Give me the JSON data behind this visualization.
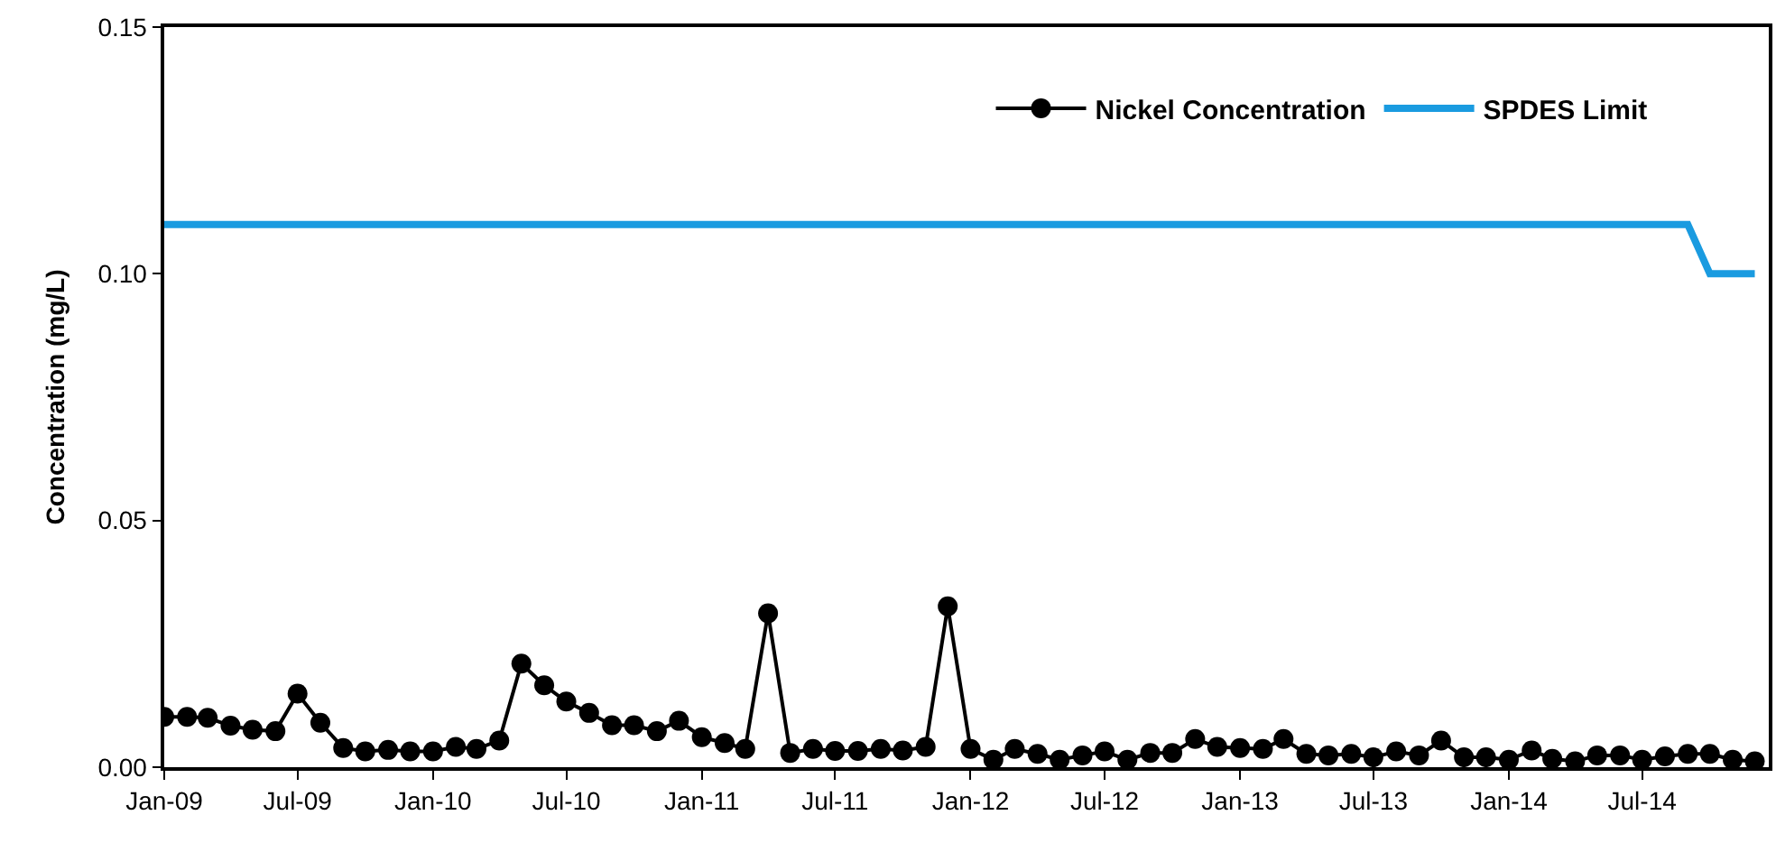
{
  "chart_data": {
    "type": "line",
    "ylabel": "Concentration (mg/L)",
    "x": [
      "2009-01",
      "2009-02",
      "2009-03",
      "2009-04",
      "2009-05",
      "2009-06",
      "2009-07",
      "2009-08",
      "2009-09",
      "2009-10",
      "2009-11",
      "2009-12",
      "2010-01",
      "2010-02",
      "2010-03",
      "2010-04",
      "2010-05",
      "2010-06",
      "2010-07",
      "2010-08",
      "2010-09",
      "2010-10",
      "2010-11",
      "2010-12",
      "2011-01",
      "2011-02",
      "2011-03",
      "2011-04",
      "2011-05",
      "2011-06",
      "2011-07",
      "2011-08",
      "2011-09",
      "2011-10",
      "2011-11",
      "2011-12",
      "2012-01",
      "2012-02",
      "2012-03",
      "2012-04",
      "2012-05",
      "2012-06",
      "2012-07",
      "2012-08",
      "2012-09",
      "2012-10",
      "2012-11",
      "2012-12",
      "2013-01",
      "2013-02",
      "2013-03",
      "2013-04",
      "2013-05",
      "2013-06",
      "2013-07",
      "2013-08",
      "2013-09",
      "2013-10",
      "2013-11",
      "2013-12",
      "2014-01",
      "2014-02",
      "2014-03",
      "2014-04",
      "2014-05",
      "2014-06",
      "2014-07",
      "2014-08",
      "2014-09",
      "2014-10",
      "2014-11",
      "2014-12"
    ],
    "series": [
      {
        "name": "Nickel Concentration",
        "color": "#000000",
        "marker": "circle",
        "values": [
          0.0102,
          0.0102,
          0.01,
          0.0084,
          0.0076,
          0.0073,
          0.0149,
          0.009,
          0.0039,
          0.0032,
          0.0035,
          0.0032,
          0.0032,
          0.0041,
          0.0037,
          0.0054,
          0.021,
          0.0166,
          0.0133,
          0.011,
          0.0085,
          0.0085,
          0.0073,
          0.0094,
          0.0061,
          0.0049,
          0.0037,
          0.0312,
          0.0029,
          0.0037,
          0.0033,
          0.0033,
          0.0037,
          0.0034,
          0.0041,
          0.0326,
          0.0037,
          0.0015,
          0.0037,
          0.0027,
          0.0015,
          0.0024,
          0.0032,
          0.0015,
          0.0029,
          0.0029,
          0.0057,
          0.0041,
          0.0039,
          0.0037,
          0.0057,
          0.0027,
          0.0024,
          0.0027,
          0.002,
          0.0032,
          0.0024,
          0.0054,
          0.002,
          0.002,
          0.0015,
          0.0034,
          0.0017,
          0.0012,
          0.0024,
          0.0024,
          0.0015,
          0.0022,
          0.0027,
          0.0027,
          0.0015,
          0.0012
        ]
      },
      {
        "name": "SPDES Limit",
        "color": "#1a9be0",
        "marker": "none",
        "values": [
          0.11,
          0.11,
          0.11,
          0.11,
          0.11,
          0.11,
          0.11,
          0.11,
          0.11,
          0.11,
          0.11,
          0.11,
          0.11,
          0.11,
          0.11,
          0.11,
          0.11,
          0.11,
          0.11,
          0.11,
          0.11,
          0.11,
          0.11,
          0.11,
          0.11,
          0.11,
          0.11,
          0.11,
          0.11,
          0.11,
          0.11,
          0.11,
          0.11,
          0.11,
          0.11,
          0.11,
          0.11,
          0.11,
          0.11,
          0.11,
          0.11,
          0.11,
          0.11,
          0.11,
          0.11,
          0.11,
          0.11,
          0.11,
          0.11,
          0.11,
          0.11,
          0.11,
          0.11,
          0.11,
          0.11,
          0.11,
          0.11,
          0.11,
          0.11,
          0.11,
          0.11,
          0.11,
          0.11,
          0.11,
          0.11,
          0.11,
          0.11,
          0.11,
          0.11,
          0.1,
          0.1,
          0.1
        ]
      }
    ],
    "xlim": [
      "2009-01-01",
      "2014-12-20"
    ],
    "xticks": [
      {
        "value": "2009-01",
        "label": "Jan-09"
      },
      {
        "value": "2009-07",
        "label": "Jul-09"
      },
      {
        "value": "2010-01",
        "label": "Jan-10"
      },
      {
        "value": "2010-07",
        "label": "Jul-10"
      },
      {
        "value": "2011-01",
        "label": "Jan-11"
      },
      {
        "value": "2011-07",
        "label": "Jul-11"
      },
      {
        "value": "2012-01",
        "label": "Jan-12"
      },
      {
        "value": "2012-07",
        "label": "Jul-12"
      },
      {
        "value": "2013-01",
        "label": "Jan-13"
      },
      {
        "value": "2013-07",
        "label": "Jul-13"
      },
      {
        "value": "2014-01",
        "label": "Jan-14"
      },
      {
        "value": "2014-07",
        "label": "Jul-14"
      }
    ],
    "ylim": [
      0,
      0.15
    ],
    "yticks": [
      {
        "value": 0,
        "label": "0.00"
      },
      {
        "value": 0.05,
        "label": "0.05"
      },
      {
        "value": 0.1,
        "label": "0.10"
      },
      {
        "value": 0.15,
        "label": "0.15"
      }
    ],
    "grid": false,
    "legend": "top right",
    "line_style": "solid"
  }
}
